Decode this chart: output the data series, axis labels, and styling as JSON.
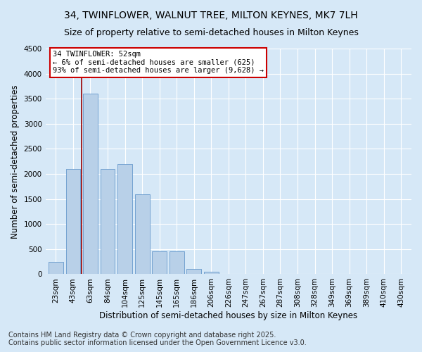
{
  "title1": "34, TWINFLOWER, WALNUT TREE, MILTON KEYNES, MK7 7LH",
  "title2": "Size of property relative to semi-detached houses in Milton Keynes",
  "xlabel": "Distribution of semi-detached houses by size in Milton Keynes",
  "ylabel": "Number of semi-detached properties",
  "footer1": "Contains HM Land Registry data © Crown copyright and database right 2025.",
  "footer2": "Contains public sector information licensed under the Open Government Licence v3.0.",
  "categories": [
    "23sqm",
    "43sqm",
    "63sqm",
    "84sqm",
    "104sqm",
    "125sqm",
    "145sqm",
    "165sqm",
    "186sqm",
    "206sqm",
    "226sqm",
    "247sqm",
    "267sqm",
    "287sqm",
    "308sqm",
    "328sqm",
    "349sqm",
    "369sqm",
    "389sqm",
    "410sqm",
    "430sqm"
  ],
  "values": [
    250,
    2100,
    3600,
    2100,
    2200,
    1600,
    450,
    450,
    100,
    50,
    10,
    3,
    1,
    0,
    0,
    0,
    0,
    0,
    0,
    0,
    0
  ],
  "bar_color": "#b8d0e8",
  "bar_edge_color": "#6699cc",
  "vline_color": "#990000",
  "vline_x_index": 1.5,
  "annotation_text": "34 TWINFLOWER: 52sqm\n← 6% of semi-detached houses are smaller (625)\n93% of semi-detached houses are larger (9,628) →",
  "annotation_box_color": "#ffffff",
  "annotation_border_color": "#cc0000",
  "ylim": [
    0,
    4500
  ],
  "yticks": [
    0,
    500,
    1000,
    1500,
    2000,
    2500,
    3000,
    3500,
    4000,
    4500
  ],
  "bg_color": "#d6e8f7",
  "plot_bg_color": "#d6e8f7",
  "title1_fontsize": 10,
  "title2_fontsize": 9,
  "xlabel_fontsize": 8.5,
  "ylabel_fontsize": 8.5,
  "footer_fontsize": 7,
  "annotation_fontsize": 7.5,
  "tick_fontsize": 7.5
}
